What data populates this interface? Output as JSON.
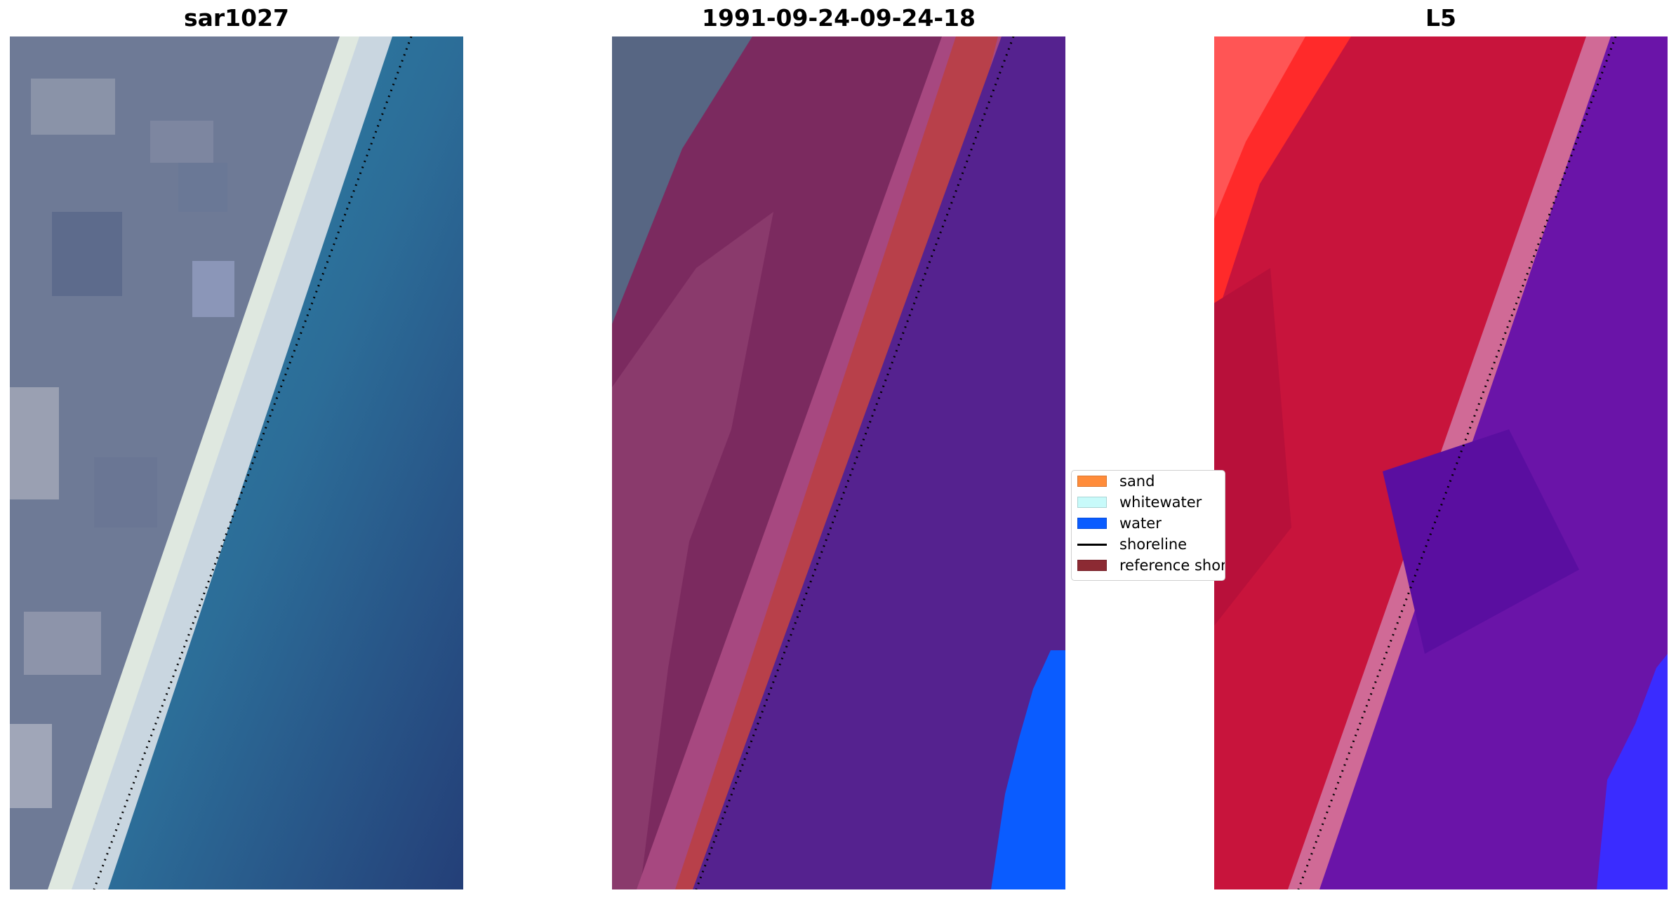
{
  "panels": [
    {
      "title": "sar1027"
    },
    {
      "title": "1991-09-24-09-24-18"
    },
    {
      "title": "L5"
    }
  ],
  "legend": {
    "items": [
      {
        "label": "sand",
        "kind": "patch",
        "color": "#ff8c3a"
      },
      {
        "label": "whitewater",
        "kind": "patch",
        "color": "#c8fafa"
      },
      {
        "label": "water",
        "kind": "patch",
        "color": "#0a5cff"
      },
      {
        "label": "shoreline",
        "kind": "line",
        "color": "#000000"
      },
      {
        "label": "reference shoreline",
        "kind": "patch",
        "color": "#8c2a33"
      }
    ]
  },
  "colors": {
    "rgb_land": "#6e7a96",
    "rgb_whitewater": "#dfe8e0",
    "rgb_water": "#2e78a0",
    "class_land": "#7b2a5f",
    "class_reference_buffer": "#b8404a",
    "class_water": "#55228f",
    "class_water_mask": "#0a5cff",
    "index_land": "#c8143c",
    "index_land_bright": "#ff2a2a",
    "index_water": "#6a14a8",
    "index_water_blue": "#3a2cff"
  }
}
